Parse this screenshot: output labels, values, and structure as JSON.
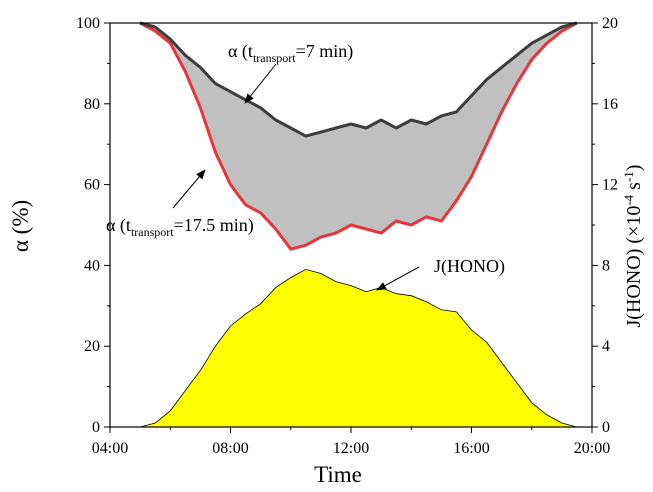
{
  "chart_data": {
    "type": "area",
    "xlabel": "Time",
    "ylabel_left": "α (%)",
    "ylabel_right": "J(HONO) (×10⁻⁴ s⁻¹)",
    "xlim": [
      "04:00",
      "20:00"
    ],
    "ylim_left": [
      0,
      100
    ],
    "ylim_right": [
      0,
      20
    ],
    "x_ticks": [
      "04:00",
      "08:00",
      "12:00",
      "16:00",
      "20:00"
    ],
    "y_ticks_left": [
      "0",
      "20",
      "40",
      "60",
      "80",
      "100"
    ],
    "y_ticks_right": [
      "0",
      "4",
      "8",
      "12",
      "16",
      "20"
    ],
    "grid": false,
    "fill_between_color": "#c0c0c0",
    "series": [
      {
        "name": "α (ttransport=7 min)",
        "axis": "left",
        "color": "#3d3d3d",
        "points": [
          [
            "05:00",
            100
          ],
          [
            "05:30",
            99
          ],
          [
            "06:00",
            96
          ],
          [
            "06:30",
            92
          ],
          [
            "07:00",
            89
          ],
          [
            "07:30",
            85
          ],
          [
            "08:00",
            83
          ],
          [
            "08:30",
            81
          ],
          [
            "09:00",
            79
          ],
          [
            "09:30",
            76
          ],
          [
            "10:00",
            74
          ],
          [
            "10:30",
            72
          ],
          [
            "11:00",
            73
          ],
          [
            "11:30",
            74
          ],
          [
            "12:00",
            75
          ],
          [
            "12:30",
            74
          ],
          [
            "13:00",
            76
          ],
          [
            "13:30",
            74
          ],
          [
            "14:00",
            76
          ],
          [
            "14:30",
            75
          ],
          [
            "15:00",
            77
          ],
          [
            "15:30",
            78
          ],
          [
            "16:00",
            82
          ],
          [
            "16:30",
            86
          ],
          [
            "17:00",
            89
          ],
          [
            "17:30",
            92
          ],
          [
            "18:00",
            95
          ],
          [
            "18:30",
            97
          ],
          [
            "19:00",
            99
          ],
          [
            "19:30",
            100
          ]
        ]
      },
      {
        "name": "α (ttransport=17.5 min)",
        "axis": "left",
        "color": "#e8343a",
        "points": [
          [
            "05:00",
            100
          ],
          [
            "05:30",
            98
          ],
          [
            "06:00",
            95
          ],
          [
            "06:30",
            88
          ],
          [
            "07:00",
            79
          ],
          [
            "07:30",
            68
          ],
          [
            "08:00",
            60
          ],
          [
            "08:30",
            55
          ],
          [
            "09:00",
            53
          ],
          [
            "09:30",
            49
          ],
          [
            "10:00",
            44
          ],
          [
            "10:30",
            45
          ],
          [
            "11:00",
            47
          ],
          [
            "11:30",
            48
          ],
          [
            "12:00",
            50
          ],
          [
            "12:30",
            49
          ],
          [
            "13:00",
            48
          ],
          [
            "13:30",
            51
          ],
          [
            "14:00",
            50
          ],
          [
            "14:30",
            52
          ],
          [
            "15:00",
            51
          ],
          [
            "15:30",
            56
          ],
          [
            "16:00",
            62
          ],
          [
            "16:30",
            70
          ],
          [
            "17:00",
            78
          ],
          [
            "17:30",
            85
          ],
          [
            "18:00",
            91
          ],
          [
            "18:30",
            95
          ],
          [
            "19:00",
            98
          ],
          [
            "19:30",
            100
          ]
        ]
      },
      {
        "name": "J(HONO)",
        "axis": "right",
        "color": "#ffff00",
        "points": [
          [
            "04:30",
            0
          ],
          [
            "05:00",
            0
          ],
          [
            "05:30",
            0.2
          ],
          [
            "06:00",
            0.8
          ],
          [
            "06:30",
            1.8
          ],
          [
            "07:00",
            2.8
          ],
          [
            "07:30",
            4.0
          ],
          [
            "08:00",
            5.0
          ],
          [
            "08:30",
            5.6
          ],
          [
            "09:00",
            6.1
          ],
          [
            "09:30",
            6.9
          ],
          [
            "10:00",
            7.4
          ],
          [
            "10:30",
            7.8
          ],
          [
            "11:00",
            7.6
          ],
          [
            "11:30",
            7.2
          ],
          [
            "12:00",
            7.0
          ],
          [
            "12:30",
            6.7
          ],
          [
            "13:00",
            6.9
          ],
          [
            "13:30",
            6.6
          ],
          [
            "14:00",
            6.5
          ],
          [
            "14:30",
            6.2
          ],
          [
            "15:00",
            5.8
          ],
          [
            "15:30",
            5.7
          ],
          [
            "16:00",
            4.8
          ],
          [
            "16:30",
            4.2
          ],
          [
            "17:00",
            3.2
          ],
          [
            "17:30",
            2.2
          ],
          [
            "18:00",
            1.2
          ],
          [
            "18:30",
            0.6
          ],
          [
            "19:00",
            0.2
          ],
          [
            "19:30",
            0
          ]
        ]
      }
    ],
    "annotations": [
      {
        "id": "ann_top",
        "prefix": "α (t",
        "sub": "transport",
        "suffix": "=7 min)",
        "arrow_to": [
          "10:45",
          74
        ]
      },
      {
        "id": "ann_mid",
        "prefix": "α (t",
        "sub": "transport",
        "suffix": "=17.5 min)",
        "arrow_to": [
          "08:45",
          67
        ]
      },
      {
        "id": "ann_j",
        "text": "J(HONO)",
        "arrow_to": [
          "13:00",
          34
        ]
      }
    ]
  }
}
